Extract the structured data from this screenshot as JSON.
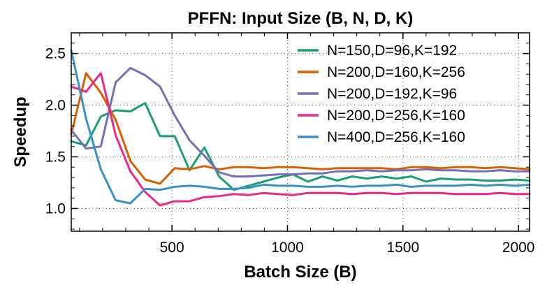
{
  "chart_data": {
    "type": "line",
    "title": "PFFN: Input Size (B, N, D, K)",
    "xlabel": "Batch Size (B)",
    "ylabel": "Speedup",
    "xlim": [
      64,
      2048
    ],
    "ylim": [
      0.78,
      2.7
    ],
    "xticks": [
      500,
      1000,
      1500,
      2000
    ],
    "yticks": [
      1.0,
      1.5,
      2.0,
      2.5
    ],
    "xtick_labels": [
      "500",
      "1000",
      "1500",
      "2000"
    ],
    "ytick_labels": [
      "1.0",
      "1.5",
      "2.0",
      "2.5"
    ],
    "grid": true,
    "legend_position": "top-right",
    "series": [
      {
        "name": "N=150,D=96,K=192",
        "color": "#1b9e77",
        "x": [
          64,
          128,
          192,
          256,
          320,
          384,
          448,
          512,
          576,
          640,
          704,
          768,
          832,
          896,
          960,
          1024,
          1088,
          1152,
          1216,
          1280,
          1344,
          1408,
          1472,
          1536,
          1600,
          1664,
          1728,
          1792,
          1856,
          1920,
          1984,
          2048
        ],
        "y": [
          1.65,
          1.61,
          1.89,
          1.95,
          1.94,
          2.02,
          1.7,
          1.7,
          1.37,
          1.59,
          1.31,
          1.18,
          1.22,
          1.26,
          1.3,
          1.33,
          1.26,
          1.31,
          1.27,
          1.31,
          1.29,
          1.31,
          1.29,
          1.31,
          1.26,
          1.29,
          1.28,
          1.28,
          1.27,
          1.27,
          1.28,
          1.27
        ]
      },
      {
        "name": "N=200,D=160,K=256",
        "color": "#d95f02",
        "x": [
          64,
          128,
          192,
          256,
          320,
          384,
          448,
          512,
          576,
          640,
          704,
          768,
          832,
          896,
          960,
          1024,
          1088,
          1152,
          1216,
          1280,
          1344,
          1408,
          1472,
          1536,
          1600,
          1664,
          1728,
          1792,
          1856,
          1920,
          1984,
          2048
        ],
        "y": [
          1.72,
          2.31,
          2.12,
          1.86,
          1.46,
          1.28,
          1.24,
          1.39,
          1.38,
          1.41,
          1.38,
          1.4,
          1.4,
          1.39,
          1.4,
          1.4,
          1.39,
          1.38,
          1.39,
          1.39,
          1.39,
          1.39,
          1.38,
          1.4,
          1.4,
          1.39,
          1.4,
          1.4,
          1.39,
          1.4,
          1.39,
          1.38
        ]
      },
      {
        "name": "N=200,D=192,K=96",
        "color": "#7570b3",
        "x": [
          64,
          128,
          192,
          256,
          320,
          384,
          448,
          512,
          576,
          640,
          704,
          768,
          832,
          896,
          960,
          1024,
          1088,
          1152,
          1216,
          1280,
          1344,
          1408,
          1472,
          1536,
          1600,
          1664,
          1728,
          1792,
          1856,
          1920,
          1984,
          2048
        ],
        "y": [
          1.76,
          1.58,
          1.6,
          2.22,
          2.36,
          2.29,
          2.18,
          1.9,
          1.66,
          1.51,
          1.35,
          1.31,
          1.31,
          1.32,
          1.33,
          1.33,
          1.34,
          1.34,
          1.36,
          1.36,
          1.37,
          1.36,
          1.37,
          1.37,
          1.38,
          1.37,
          1.37,
          1.36,
          1.36,
          1.37,
          1.36,
          1.36
        ]
      },
      {
        "name": "N=200,D=256,K=160",
        "color": "#e7298a",
        "x": [
          64,
          128,
          192,
          256,
          320,
          384,
          448,
          512,
          576,
          640,
          704,
          768,
          832,
          896,
          960,
          1024,
          1088,
          1152,
          1216,
          1280,
          1344,
          1408,
          1472,
          1536,
          1600,
          1664,
          1728,
          1792,
          1856,
          1920,
          1984,
          2048
        ],
        "y": [
          2.18,
          2.13,
          2.31,
          1.71,
          1.36,
          1.16,
          1.03,
          1.07,
          1.07,
          1.11,
          1.12,
          1.14,
          1.13,
          1.15,
          1.14,
          1.13,
          1.15,
          1.15,
          1.15,
          1.14,
          1.15,
          1.15,
          1.14,
          1.15,
          1.15,
          1.15,
          1.14,
          1.14,
          1.14,
          1.15,
          1.14,
          1.14
        ]
      },
      {
        "name": "N=400,D=256,K=160",
        "color": "#3a8fc4",
        "x": [
          64,
          128,
          192,
          256,
          320,
          384,
          448,
          512,
          576,
          640,
          704,
          768,
          832,
          896,
          960,
          1024,
          1088,
          1152,
          1216,
          1280,
          1344,
          1408,
          1472,
          1536,
          1600,
          1664,
          1728,
          1792,
          1856,
          1920,
          1984,
          2048
        ],
        "y": [
          2.53,
          1.87,
          1.38,
          1.08,
          1.05,
          1.19,
          1.18,
          1.21,
          1.22,
          1.21,
          1.19,
          1.19,
          1.2,
          1.23,
          1.22,
          1.22,
          1.21,
          1.21,
          1.22,
          1.21,
          1.22,
          1.22,
          1.23,
          1.21,
          1.22,
          1.22,
          1.22,
          1.23,
          1.22,
          1.23,
          1.22,
          1.23
        ]
      }
    ]
  }
}
